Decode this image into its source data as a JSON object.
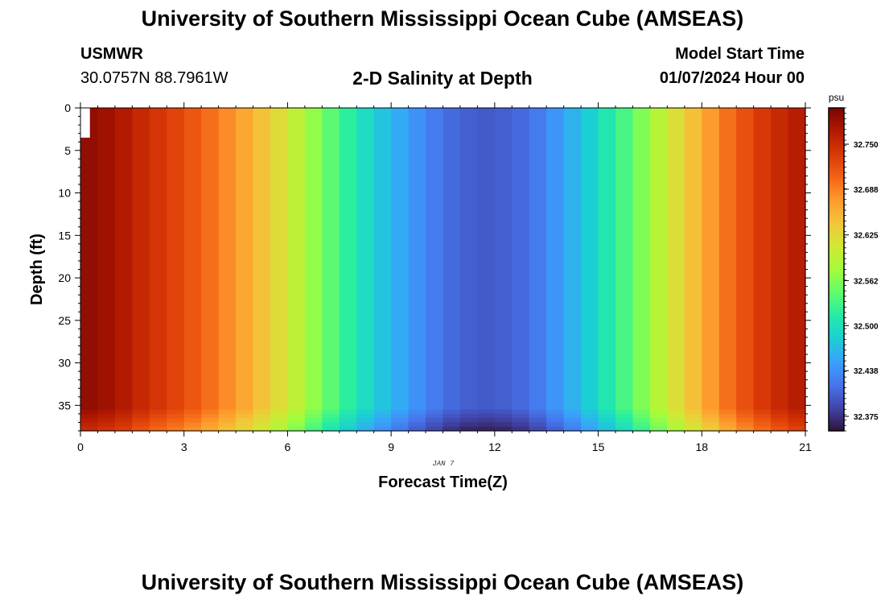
{
  "header": {
    "title": "University of Southern Mississippi Ocean Cube (AMSEAS)",
    "station": "USMWR",
    "coordinates": "30.0757N  88.7961W",
    "subtitle": "2-D Salinity at Depth",
    "model_start_label": "Model Start Time",
    "model_start_value": "01/07/2024 Hour 00"
  },
  "footer": {
    "title": "University of Southern Mississippi Ocean Cube (AMSEAS)"
  },
  "chart_data": {
    "type": "heatmap",
    "title": "2-D Salinity at Depth",
    "xlabel": "Forecast Time(Z)",
    "ylabel": "Depth (ft)",
    "date_label": "JAN 7",
    "x_ticks": [
      0,
      3,
      6,
      9,
      12,
      15,
      18,
      21
    ],
    "y_ticks": [
      0,
      5,
      10,
      15,
      20,
      25,
      30,
      35
    ],
    "xlim": [
      0,
      21
    ],
    "ylim": [
      0,
      38
    ],
    "y_inverted": true,
    "time_step_hours": 0.5,
    "salinity_profile_psu": {
      "hours": [
        0,
        1,
        2,
        3,
        4,
        5,
        6,
        7,
        8,
        9,
        10,
        11,
        12,
        13,
        14,
        15,
        16,
        17,
        18,
        19,
        20,
        21
      ],
      "values": [
        32.79,
        32.775,
        32.745,
        32.722,
        32.69,
        32.655,
        32.61,
        32.555,
        32.505,
        32.465,
        32.43,
        32.405,
        32.4,
        32.415,
        32.45,
        32.495,
        32.545,
        32.605,
        32.66,
        32.71,
        32.745,
        32.77
      ]
    },
    "bottom_layer_depth_ft": 35.5,
    "bottom_layer_offset_psu": -0.035,
    "missing_data": {
      "x_range": [
        0,
        0.25
      ],
      "depth_range": [
        0,
        3.5
      ]
    },
    "colorbar": {
      "units": "psu",
      "min": 32.355,
      "max": 32.8,
      "ticks": [
        "32.375",
        "32.438",
        "32.500",
        "32.562",
        "32.625",
        "32.688",
        "32.750"
      ],
      "colors": [
        "#30123b",
        "#4145ab",
        "#4675ed",
        "#39a2fc",
        "#1bcfd4",
        "#24eca6",
        "#61fc6c",
        "#a4fc3b",
        "#d1e834",
        "#f3c63a",
        "#fe9b2d",
        "#f36315",
        "#d93806",
        "#b11901",
        "#7a0402"
      ]
    }
  }
}
